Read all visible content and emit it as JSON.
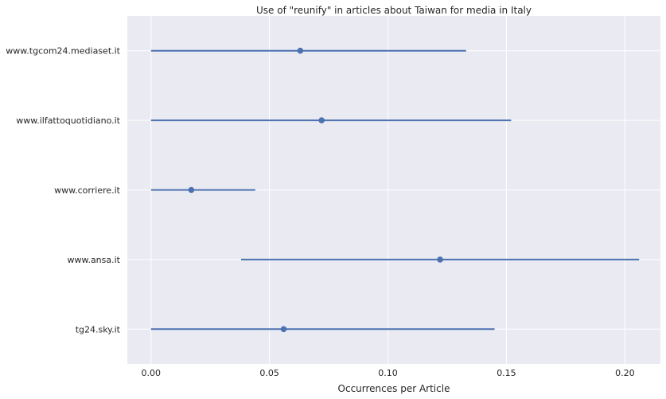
{
  "chart_data": {
    "type": "scatter",
    "title": "Use of \"reunify\" in articles about Taiwan for media in Italy",
    "xlabel": "Occurrences per Article",
    "ylabel": "",
    "xlim": [
      -0.01,
      0.215
    ],
    "xticks": [
      "0.00",
      "0.05",
      "0.10",
      "0.15",
      "0.20"
    ],
    "xtick_values": [
      0.0,
      0.05,
      0.1,
      0.15,
      0.2
    ],
    "grid": true,
    "categories": [
      "www.tgcom24.mediaset.it",
      "www.ilfattoquotidiano.it",
      "www.corriere.it",
      "www.ansa.it",
      "tg24.sky.it"
    ],
    "series": [
      {
        "values": [
          0.063,
          0.072,
          0.017,
          0.122,
          0.056
        ],
        "ci_low": [
          0.0,
          0.0,
          0.0,
          0.038,
          0.0
        ],
        "ci_high": [
          0.133,
          0.152,
          0.044,
          0.206,
          0.145
        ]
      }
    ],
    "colors": {
      "marker": "#4c72b0",
      "background": "#eaeaf2",
      "grid": "#ffffff"
    }
  }
}
